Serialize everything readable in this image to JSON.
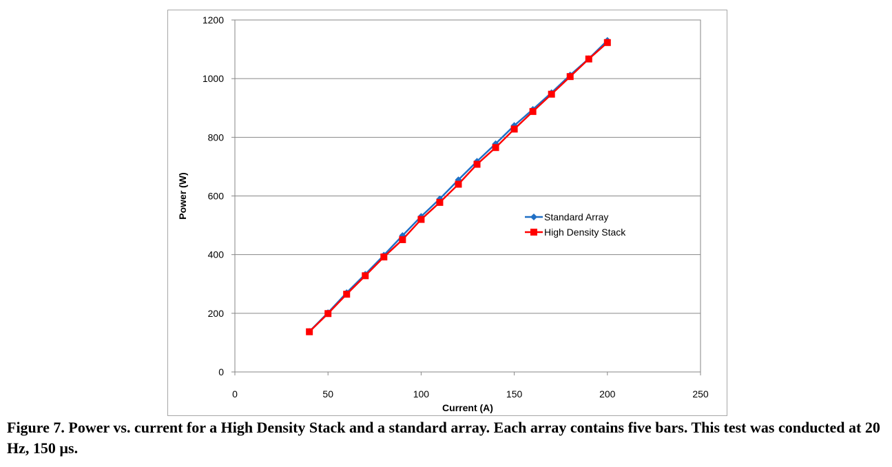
{
  "chart_data": {
    "type": "line",
    "xlabel": "Current (A)",
    "ylabel": "Power (W)",
    "xlim": [
      0,
      250
    ],
    "ylim": [
      0,
      1200
    ],
    "xticks": [
      0,
      50,
      100,
      150,
      200,
      250
    ],
    "yticks": [
      0,
      200,
      400,
      600,
      800,
      1000,
      1200
    ],
    "grid": "horizontal",
    "legend_position": "right-center",
    "series": [
      {
        "name": "Standard Array",
        "color": "#1f6fc5",
        "marker": "diamond",
        "x": [
          40,
          50,
          60,
          70,
          80,
          90,
          100,
          110,
          120,
          130,
          140,
          150,
          160,
          170,
          180,
          190,
          200
        ],
        "y": [
          138,
          202,
          270,
          333,
          398,
          465,
          530,
          590,
          655,
          718,
          778,
          840,
          895,
          952,
          1012,
          1068,
          1130
        ]
      },
      {
        "name": "High Density Stack",
        "color": "#ff0000",
        "marker": "square",
        "x": [
          40,
          50,
          60,
          70,
          80,
          90,
          100,
          110,
          120,
          130,
          140,
          150,
          160,
          170,
          180,
          190,
          200
        ],
        "y": [
          137,
          199,
          265,
          328,
          392,
          451,
          520,
          578,
          640,
          708,
          765,
          828,
          888,
          947,
          1007,
          1067,
          1123
        ]
      }
    ]
  },
  "caption": {
    "text": "Figure 7.  Power vs. current for a High Density Stack and a standard array.  Each array contains five bars.  This test was conducted at 20 Hz, 150 µs."
  }
}
